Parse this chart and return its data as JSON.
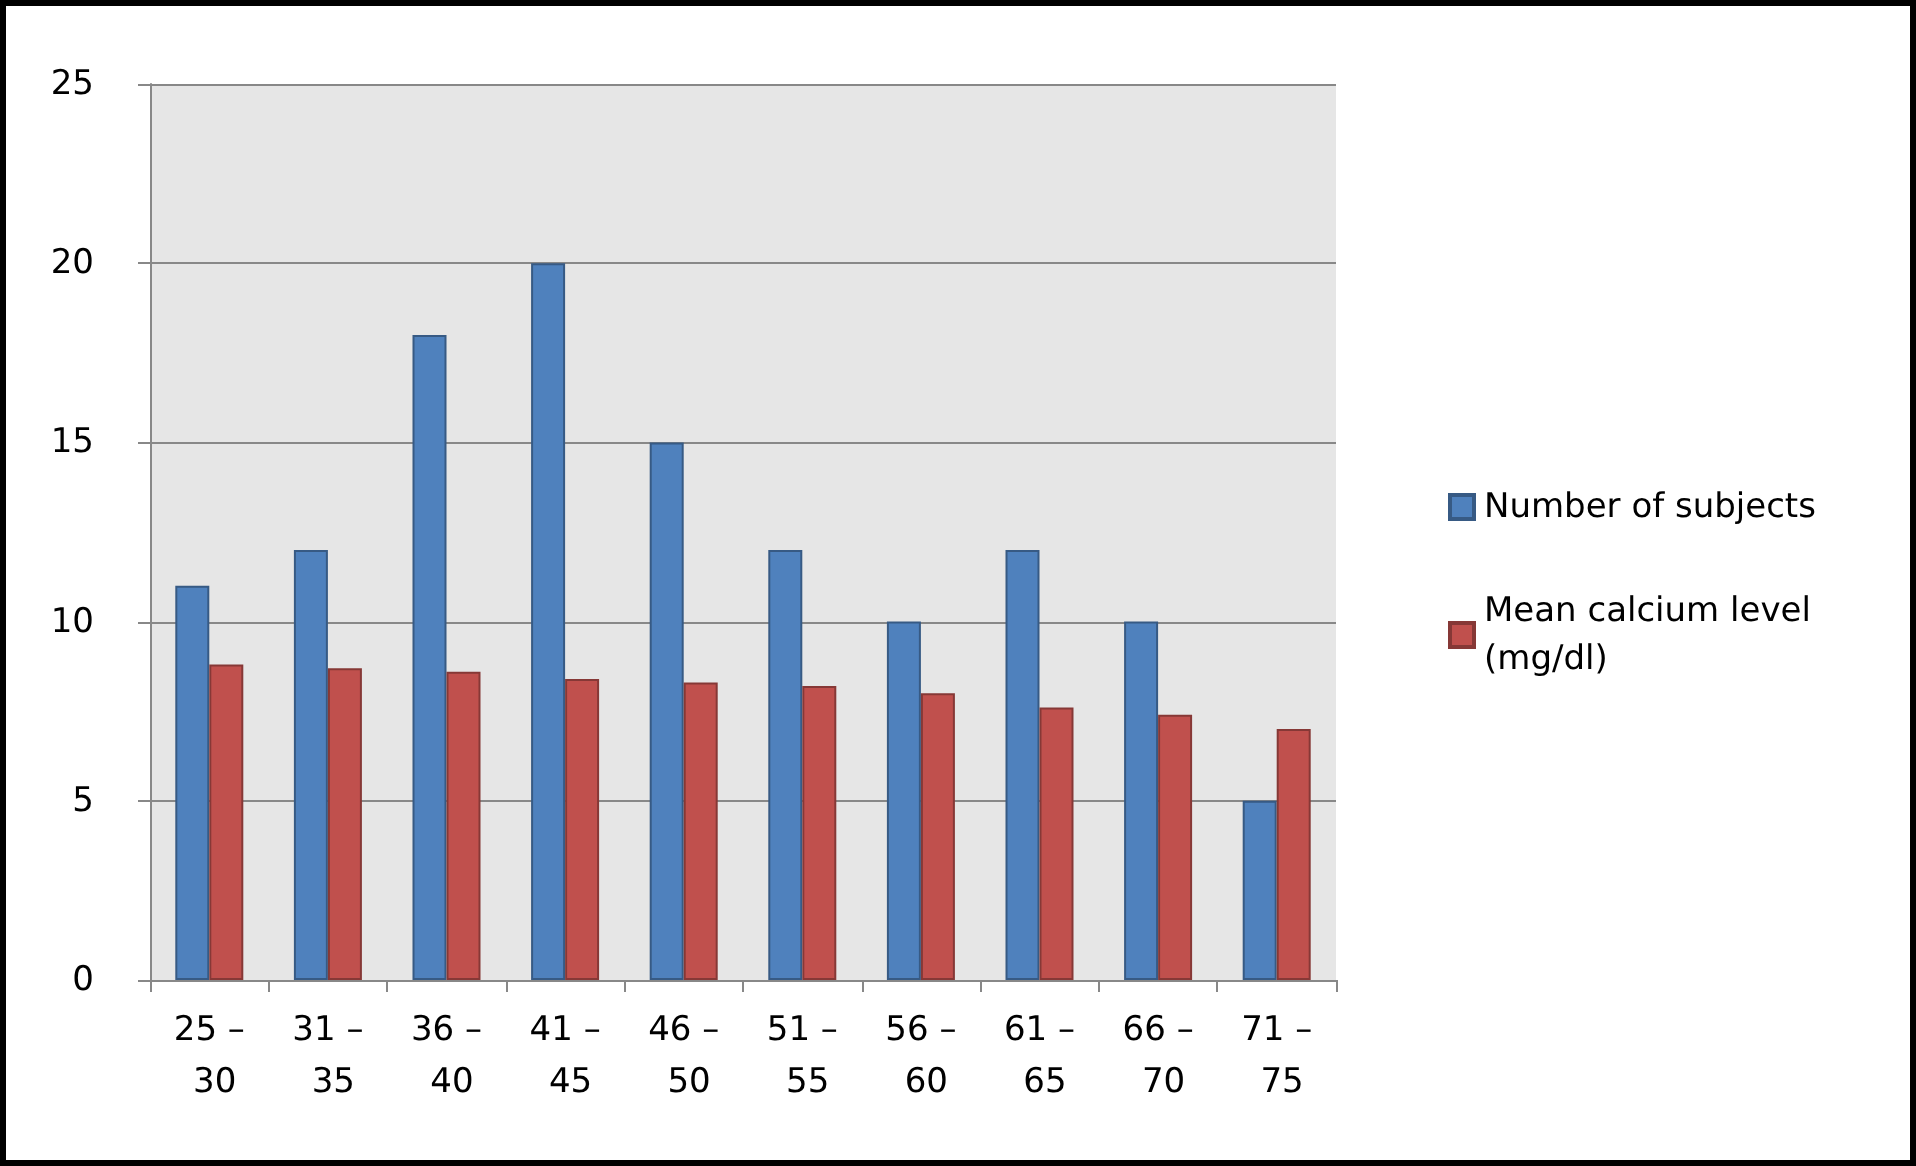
{
  "chart_data": {
    "type": "bar",
    "categories": [
      "25 – 30",
      "31 – 35",
      "36 – 40",
      "41 – 45",
      "46 – 50",
      "51 – 55",
      "56 – 60",
      "61 – 65",
      "66 – 70",
      "71 – 75"
    ],
    "series": [
      {
        "name": "Number of subjects",
        "color": "#4f81bd",
        "values": [
          11,
          12,
          18,
          20,
          15,
          12,
          10,
          12,
          10,
          5
        ]
      },
      {
        "name": "Mean calcium level (mg/dl)",
        "color": "#c0504d",
        "values": [
          8.8,
          8.7,
          8.6,
          8.4,
          8.3,
          8.2,
          8.0,
          7.6,
          7.4,
          7.0
        ]
      }
    ],
    "ylim": [
      0,
      25
    ],
    "yticks": [
      0,
      5,
      10,
      15,
      20,
      25
    ],
    "grid": "y",
    "legend": "right"
  }
}
